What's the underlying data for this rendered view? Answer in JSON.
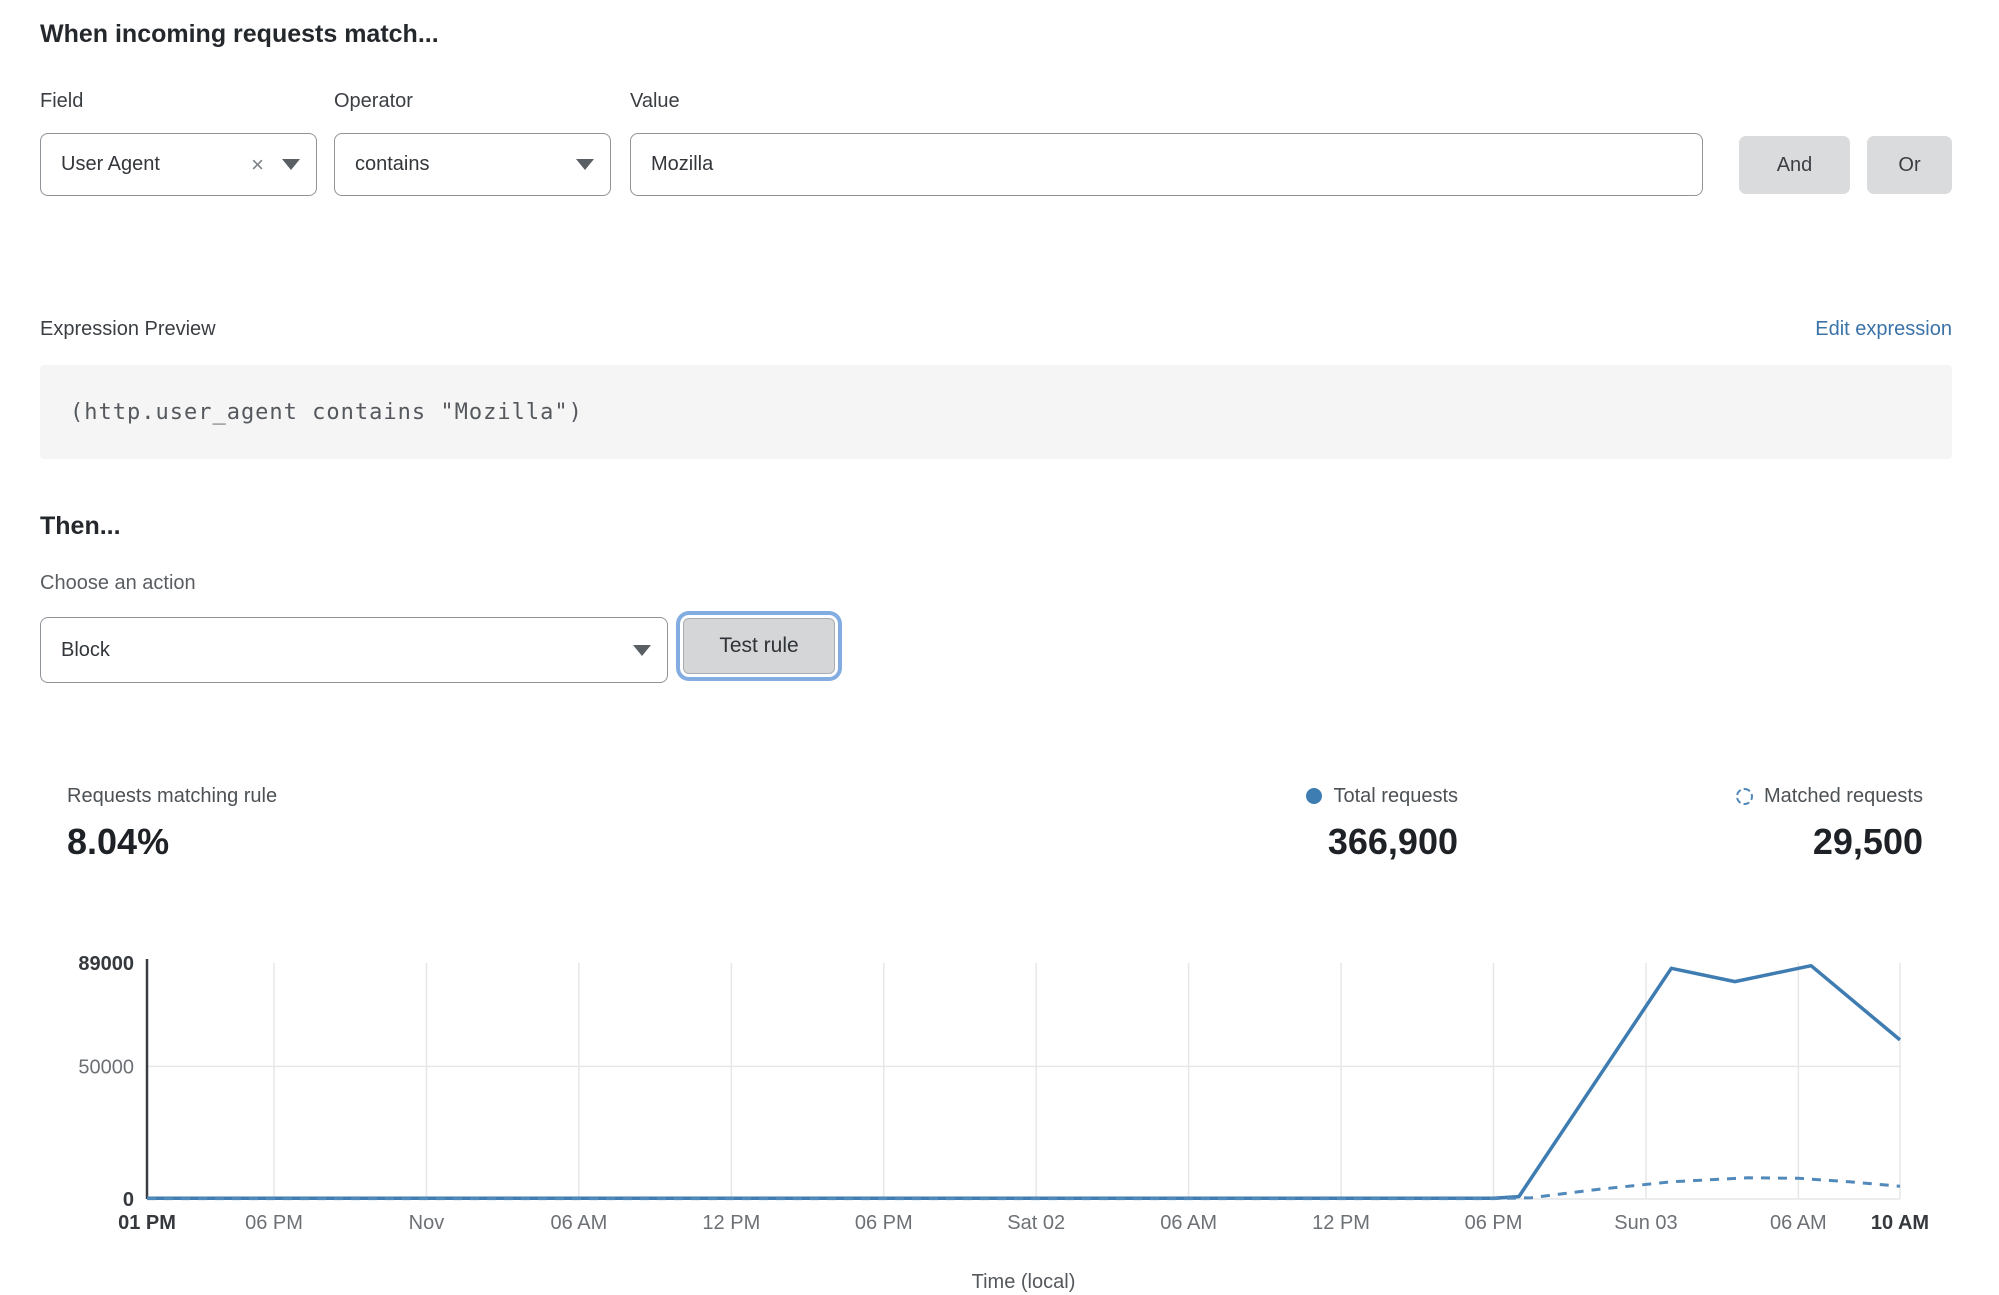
{
  "rule_builder": {
    "heading": "When incoming requests match...",
    "field": {
      "label": "Field",
      "value": "User Agent"
    },
    "operator": {
      "label": "Operator",
      "value": "contains"
    },
    "value": {
      "label": "Value",
      "value": "Mozilla"
    },
    "and_label": "And",
    "or_label": "Or"
  },
  "expression": {
    "label": "Expression Preview",
    "edit_link": "Edit expression",
    "code": "(http.user_agent contains \"Mozilla\")"
  },
  "action": {
    "heading": "Then...",
    "choose_label": "Choose an action",
    "selected": "Block",
    "test_button": "Test rule"
  },
  "stats": {
    "matching": {
      "label": "Requests matching rule",
      "value": "8.04%"
    },
    "total": {
      "label": "Total requests",
      "value": "366,900",
      "marker": "solid-dot"
    },
    "matched": {
      "label": "Matched requests",
      "value": "29,500",
      "marker": "dashed-circle"
    }
  },
  "colors": {
    "accent_blue": "#3d7db2",
    "dashed_blue": "#4f87b9",
    "link_blue": "#3b73a9",
    "focus_ring": "#83ace1",
    "button_gray": "#dadbdd",
    "code_bg": "#f5f5f6"
  },
  "chart_data": {
    "type": "line",
    "title": "",
    "xlabel": "Time (local)",
    "ylabel": "",
    "x_unit": "hours from start (Fri 01 PM to Sun 10 AM)",
    "x_range": [
      0,
      69
    ],
    "y_range": [
      0,
      89000
    ],
    "grid": true,
    "legend_position": "above-right",
    "x_ticks": [
      {
        "pos": 0,
        "label": "01 PM",
        "bold": true
      },
      {
        "pos": 5,
        "label": "06 PM",
        "bold": false
      },
      {
        "pos": 11,
        "label": "Nov",
        "bold": false
      },
      {
        "pos": 17,
        "label": "06 AM",
        "bold": false
      },
      {
        "pos": 23,
        "label": "12 PM",
        "bold": false
      },
      {
        "pos": 29,
        "label": "06 PM",
        "bold": false
      },
      {
        "pos": 35,
        "label": "Sat 02",
        "bold": false
      },
      {
        "pos": 41,
        "label": "06 AM",
        "bold": false
      },
      {
        "pos": 47,
        "label": "12 PM",
        "bold": false
      },
      {
        "pos": 53,
        "label": "06 PM",
        "bold": false
      },
      {
        "pos": 59,
        "label": "Sun 03",
        "bold": false
      },
      {
        "pos": 65,
        "label": "06 AM",
        "bold": false
      },
      {
        "pos": 69,
        "label": "10 AM",
        "bold": true
      }
    ],
    "y_ticks": [
      {
        "value": 0,
        "label": "0",
        "bold": true,
        "grid": true
      },
      {
        "value": 50000,
        "label": "50000",
        "bold": false,
        "grid": true
      },
      {
        "value": 89000,
        "label": "89000",
        "bold": true,
        "grid": false
      }
    ],
    "series": [
      {
        "name": "Total requests",
        "style": "solid",
        "color": "#3e7cb1",
        "points": [
          [
            0,
            300
          ],
          [
            5,
            300
          ],
          [
            11,
            300
          ],
          [
            17,
            300
          ],
          [
            23,
            300
          ],
          [
            29,
            300
          ],
          [
            35,
            300
          ],
          [
            41,
            300
          ],
          [
            47,
            300
          ],
          [
            53,
            300
          ],
          [
            54,
            900
          ],
          [
            60,
            87000
          ],
          [
            62.5,
            82000
          ],
          [
            65.5,
            88000
          ],
          [
            69,
            60000
          ]
        ]
      },
      {
        "name": "Matched requests",
        "style": "dashed",
        "color": "#5089ba",
        "points": [
          [
            0,
            150
          ],
          [
            5,
            150
          ],
          [
            11,
            150
          ],
          [
            17,
            150
          ],
          [
            23,
            150
          ],
          [
            29,
            150
          ],
          [
            35,
            150
          ],
          [
            41,
            150
          ],
          [
            47,
            150
          ],
          [
            53,
            150
          ],
          [
            54.5,
            500
          ],
          [
            57,
            3500
          ],
          [
            60,
            6500
          ],
          [
            63,
            8000
          ],
          [
            65,
            7800
          ],
          [
            67,
            6500
          ],
          [
            69,
            4800
          ]
        ]
      }
    ]
  }
}
